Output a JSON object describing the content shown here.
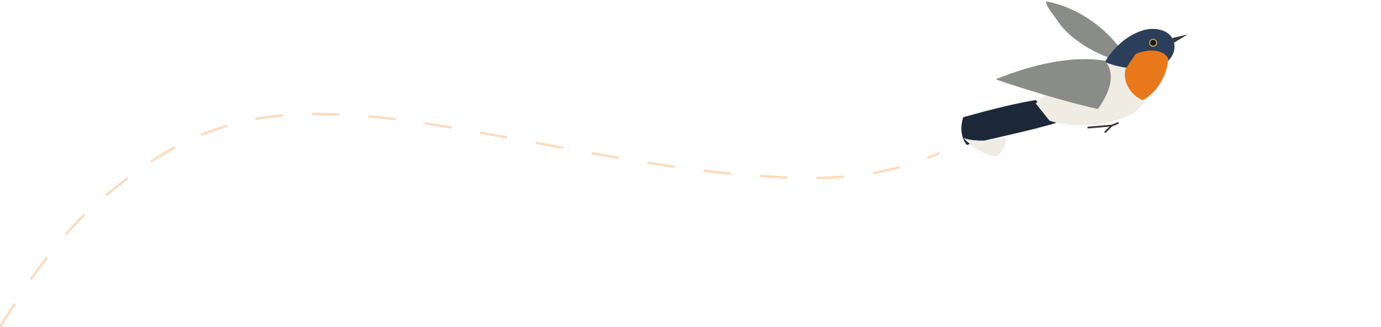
{
  "illustration": {
    "subject": "bird-illustration",
    "flight_path_style": "dashed",
    "colors": {
      "background": "#ffffff",
      "flight_path": "#fddcbc",
      "bird_head": "#2c3f5a",
      "bird_throat": "#e8781a",
      "bird_wing": "#8a8c88",
      "bird_belly": "#efece4",
      "bird_tail": "#1c2838"
    }
  }
}
